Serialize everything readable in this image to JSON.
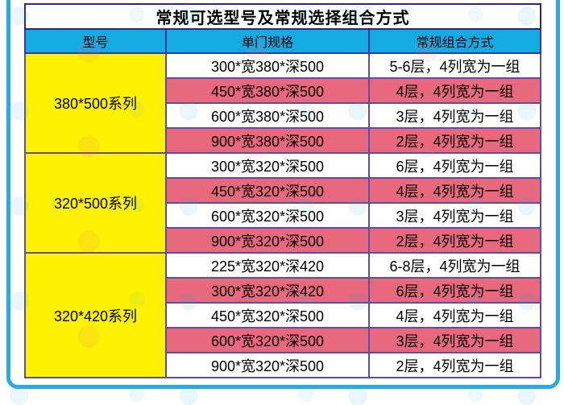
{
  "table": {
    "title": "常规可选型号及常规选择组合方式",
    "columns": [
      "型号",
      "单门规格",
      "常规组合方式"
    ],
    "groups": [
      {
        "model": "380*500系列",
        "rows": [
          {
            "spec": "300*宽380*深500",
            "combo": "5-6层，4列宽为一组"
          },
          {
            "spec": "450*宽380*深500",
            "combo": "4层，4列宽为一组"
          },
          {
            "spec": "600*宽380*深500",
            "combo": "3层，4列宽为一组"
          },
          {
            "spec": "900*宽380*深500",
            "combo": "2层，4列宽为一组"
          }
        ]
      },
      {
        "model": "320*500系列",
        "rows": [
          {
            "spec": "300*宽320*深500",
            "combo": "6层，4列宽为一组"
          },
          {
            "spec": "450*宽320*深500",
            "combo": "4层，4列宽为一组"
          },
          {
            "spec": "600*宽320*深500",
            "combo": "3层，4列宽为一组"
          },
          {
            "spec": "900*宽320*深500",
            "combo": "2层，4列宽为一组"
          }
        ]
      },
      {
        "model": "320*420系列",
        "rows": [
          {
            "spec": "225*宽320*深420",
            "combo": "6-8层，4列宽为一组"
          },
          {
            "spec": "300*宽320*深420",
            "combo": "6层，4列宽为一组"
          },
          {
            "spec": "450*宽320*深500",
            "combo": "4层，4列宽为一组"
          },
          {
            "spec": "600*宽320*深500",
            "combo": "3层，4列宽为一组"
          },
          {
            "spec": "900*宽320*深500",
            "combo": "2层，4列宽为一组"
          }
        ]
      }
    ]
  },
  "colors": {
    "frame": "#29abe2",
    "header_bg": "#14abe3",
    "model_bg": "#fef102",
    "row_pink": "#e8687e",
    "row_white": "#ffffff",
    "grid_line": "#5d4ca6",
    "outer_line": "#2b2487"
  }
}
